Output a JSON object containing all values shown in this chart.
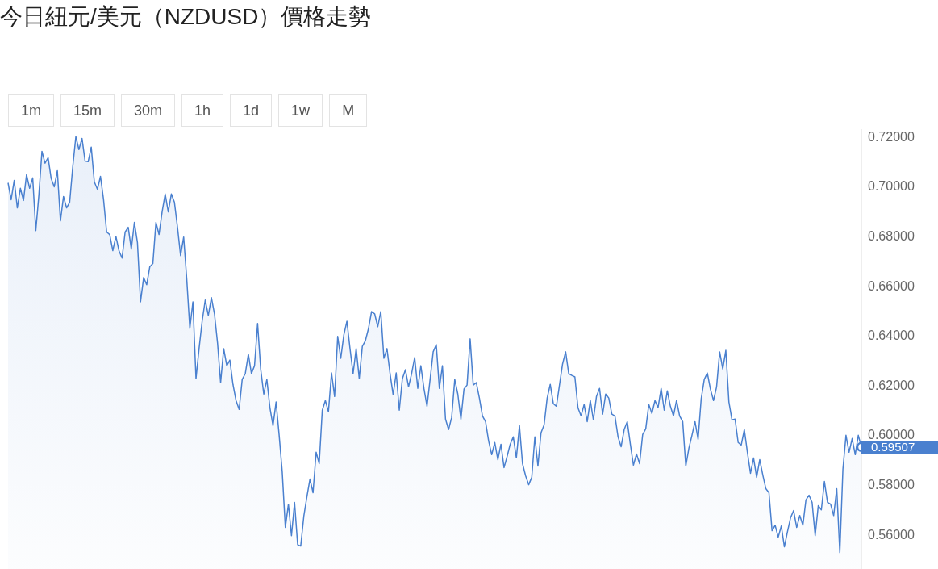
{
  "chart_data": {
    "type": "area",
    "title": "今日紐元/美元（NZDUSD）價格走勢",
    "annotations": [
      "1m",
      "15m",
      "30m",
      "1h",
      "1d",
      "1w",
      "M",
      "0.59507"
    ],
    "categories": [
      null,
      null,
      null,
      null,
      null,
      null,
      null,
      null,
      null,
      null,
      null,
      null,
      null,
      null,
      null,
      null,
      null,
      null,
      null,
      null,
      null,
      null,
      null,
      null,
      null,
      null,
      null,
      null,
      null,
      null,
      null,
      null,
      null,
      null,
      null,
      null,
      null,
      null,
      null,
      null,
      null,
      null,
      null,
      null,
      null,
      null,
      null,
      null,
      null,
      null,
      null,
      null,
      null,
      null,
      null,
      null,
      null,
      null,
      null,
      null,
      null,
      null,
      null,
      null,
      null,
      null,
      null,
      null,
      null,
      null,
      null,
      null,
      null,
      null,
      null,
      null,
      null,
      null,
      null,
      null,
      null,
      null,
      null,
      null,
      null,
      null,
      null,
      null,
      null,
      null,
      null,
      null,
      null,
      null,
      null,
      null,
      null,
      null,
      null,
      null,
      null,
      null,
      null,
      null,
      null,
      null,
      null,
      null,
      null,
      null,
      null,
      null,
      null,
      null,
      null,
      null,
      null,
      null,
      null,
      null,
      null,
      null,
      null,
      null,
      null,
      null,
      null,
      null,
      null,
      null,
      null,
      null,
      null,
      null,
      null,
      null,
      null,
      null,
      null,
      null,
      null,
      null,
      null,
      null,
      null,
      null,
      null,
      null,
      null,
      null,
      null,
      null,
      null,
      null,
      null,
      null,
      null,
      null,
      null,
      null,
      null,
      null,
      null,
      null,
      null,
      null,
      null,
      null,
      null,
      null,
      null,
      null,
      null,
      null,
      null,
      null,
      null,
      null,
      null,
      null,
      null,
      null,
      null,
      null,
      null,
      null,
      null,
      null,
      null,
      null,
      null,
      null,
      null,
      null,
      null,
      null,
      null,
      null,
      null,
      null,
      null,
      null,
      null,
      null,
      null,
      null,
      null,
      null,
      null,
      null,
      null,
      null,
      null,
      null,
      null,
      null,
      null,
      null,
      null,
      null,
      null,
      null,
      null,
      null,
      null,
      null,
      null,
      null,
      null,
      null,
      null,
      null,
      null,
      null,
      null,
      null,
      null,
      null,
      null,
      null,
      null,
      null,
      null,
      null,
      null,
      null,
      null,
      null,
      null,
      null,
      null,
      null,
      null,
      null,
      null,
      null,
      null,
      null,
      null,
      null,
      null,
      null,
      null,
      null,
      null,
      null,
      null,
      null,
      null,
      null,
      null,
      null,
      null,
      null,
      null,
      null,
      null,
      null
    ],
    "series": [
      {
        "color": "#4a80cf",
        "values": [
          0.7014,
          0.6946,
          0.7024,
          0.6913,
          0.6992,
          0.6943,
          0.7047,
          0.6992,
          0.7034,
          0.6822,
          0.6965,
          0.7141,
          0.7093,
          0.7115,
          0.7031,
          0.6998,
          0.7063,
          0.6861,
          0.6959,
          0.6913,
          0.6936,
          0.7079,
          0.72,
          0.7148,
          0.7193,
          0.7102,
          0.7099,
          0.7158,
          0.7018,
          0.6988,
          0.704,
          0.6946,
          0.6816,
          0.6806,
          0.6741,
          0.6799,
          0.6741,
          0.6711,
          0.6816,
          0.6835,
          0.6747,
          0.6855,
          0.6773,
          0.6535,
          0.6633,
          0.6604,
          0.6676,
          0.6689,
          0.6855,
          0.6806,
          0.6897,
          0.6969,
          0.6897,
          0.6969,
          0.6936,
          0.6835,
          0.6721,
          0.6796,
          0.6627,
          0.6428,
          0.6535,
          0.6226,
          0.6347,
          0.6457,
          0.6542,
          0.648,
          0.6552,
          0.6487,
          0.6369,
          0.621,
          0.6347,
          0.6278,
          0.6301,
          0.6203,
          0.6138,
          0.6102,
          0.6223,
          0.6246,
          0.6324,
          0.6246,
          0.6278,
          0.6448,
          0.6265,
          0.6164,
          0.6223,
          0.6109,
          0.6037,
          0.6132,
          0.5998,
          0.5851,
          0.5627,
          0.5721,
          0.5594,
          0.5728,
          0.5558,
          0.5552,
          0.5672,
          0.575,
          0.5822,
          0.5767,
          0.593,
          0.5884,
          0.6099,
          0.6138,
          0.6093,
          0.6249,
          0.6154,
          0.6396,
          0.6308,
          0.6402,
          0.6457,
          0.6347,
          0.6246,
          0.6347,
          0.6226,
          0.6356,
          0.6379,
          0.6428,
          0.6496,
          0.6487,
          0.6435,
          0.6496,
          0.6308,
          0.6347,
          0.6246,
          0.6161,
          0.6249,
          0.6099,
          0.6226,
          0.6262,
          0.6193,
          0.6246,
          0.6311,
          0.6187,
          0.6278,
          0.6187,
          0.6115,
          0.6223,
          0.6334,
          0.6363,
          0.6187,
          0.6278,
          0.6063,
          0.6021,
          0.607,
          0.6223,
          0.6164,
          0.6063,
          0.6184,
          0.62,
          0.6386,
          0.62,
          0.621,
          0.6148,
          0.6076,
          0.6053,
          0.5975,
          0.592,
          0.5969,
          0.59,
          0.5962,
          0.5868,
          0.5913,
          0.5962,
          0.5992,
          0.5907,
          0.6037,
          0.5884,
          0.5835,
          0.5799,
          0.5829,
          0.5992,
          0.5874,
          0.6008,
          0.604,
          0.6148,
          0.6203,
          0.6125,
          0.6115,
          0.62,
          0.6285,
          0.6334,
          0.6246,
          0.6239,
          0.6233,
          0.6109,
          0.6076,
          0.6122,
          0.6053,
          0.6138,
          0.606,
          0.6154,
          0.6187,
          0.6083,
          0.6164,
          0.6148,
          0.6083,
          0.6076,
          0.5992,
          0.5952,
          0.6021,
          0.6053,
          0.5962,
          0.5878,
          0.5923,
          0.5884,
          0.6001,
          0.6024,
          0.6122,
          0.6086,
          0.6138,
          0.6109,
          0.6187,
          0.6099,
          0.6177,
          0.6115,
          0.6076,
          0.6138,
          0.6076,
          0.6053,
          0.5874,
          0.5946,
          0.5998,
          0.6053,
          0.5982,
          0.6145,
          0.6223,
          0.6249,
          0.6184,
          0.6138,
          0.6193,
          0.6334,
          0.6265,
          0.634,
          0.6132,
          0.606,
          0.6063,
          0.5969,
          0.5959,
          0.6021,
          0.593,
          0.5845,
          0.5907,
          0.5829,
          0.59,
          0.5838,
          0.5783,
          0.5767,
          0.5614,
          0.5636,
          0.5588,
          0.5633,
          0.5549,
          0.561,
          0.5666,
          0.5695,
          0.5627,
          0.5675,
          0.5636,
          0.5738,
          0.5757,
          0.5728,
          0.5594,
          0.5715,
          0.5698,
          0.5812,
          0.5728,
          0.5721,
          0.5675,
          0.5783,
          0.5526,
          0.5861,
          0.5998,
          0.593,
          0.5985,
          0.592,
          0.5998,
          0.5951
        ]
      }
    ],
    "ylim": [
      0.546,
      0.723
    ],
    "yticks": [
      {
        "value": 0.56,
        "label": "0.56000"
      },
      {
        "value": 0.58,
        "label": "0.58000"
      },
      {
        "value": 0.6,
        "label": "0.60000"
      },
      {
        "value": 0.62,
        "label": "0.62000"
      },
      {
        "value": 0.64,
        "label": "0.64000"
      },
      {
        "value": 0.66,
        "label": "0.66000"
      },
      {
        "value": 0.68,
        "label": "0.68000"
      },
      {
        "value": 0.7,
        "label": "0.70000"
      },
      {
        "value": 0.72,
        "label": "0.72000"
      }
    ],
    "tick_labels": "y"
  }
}
